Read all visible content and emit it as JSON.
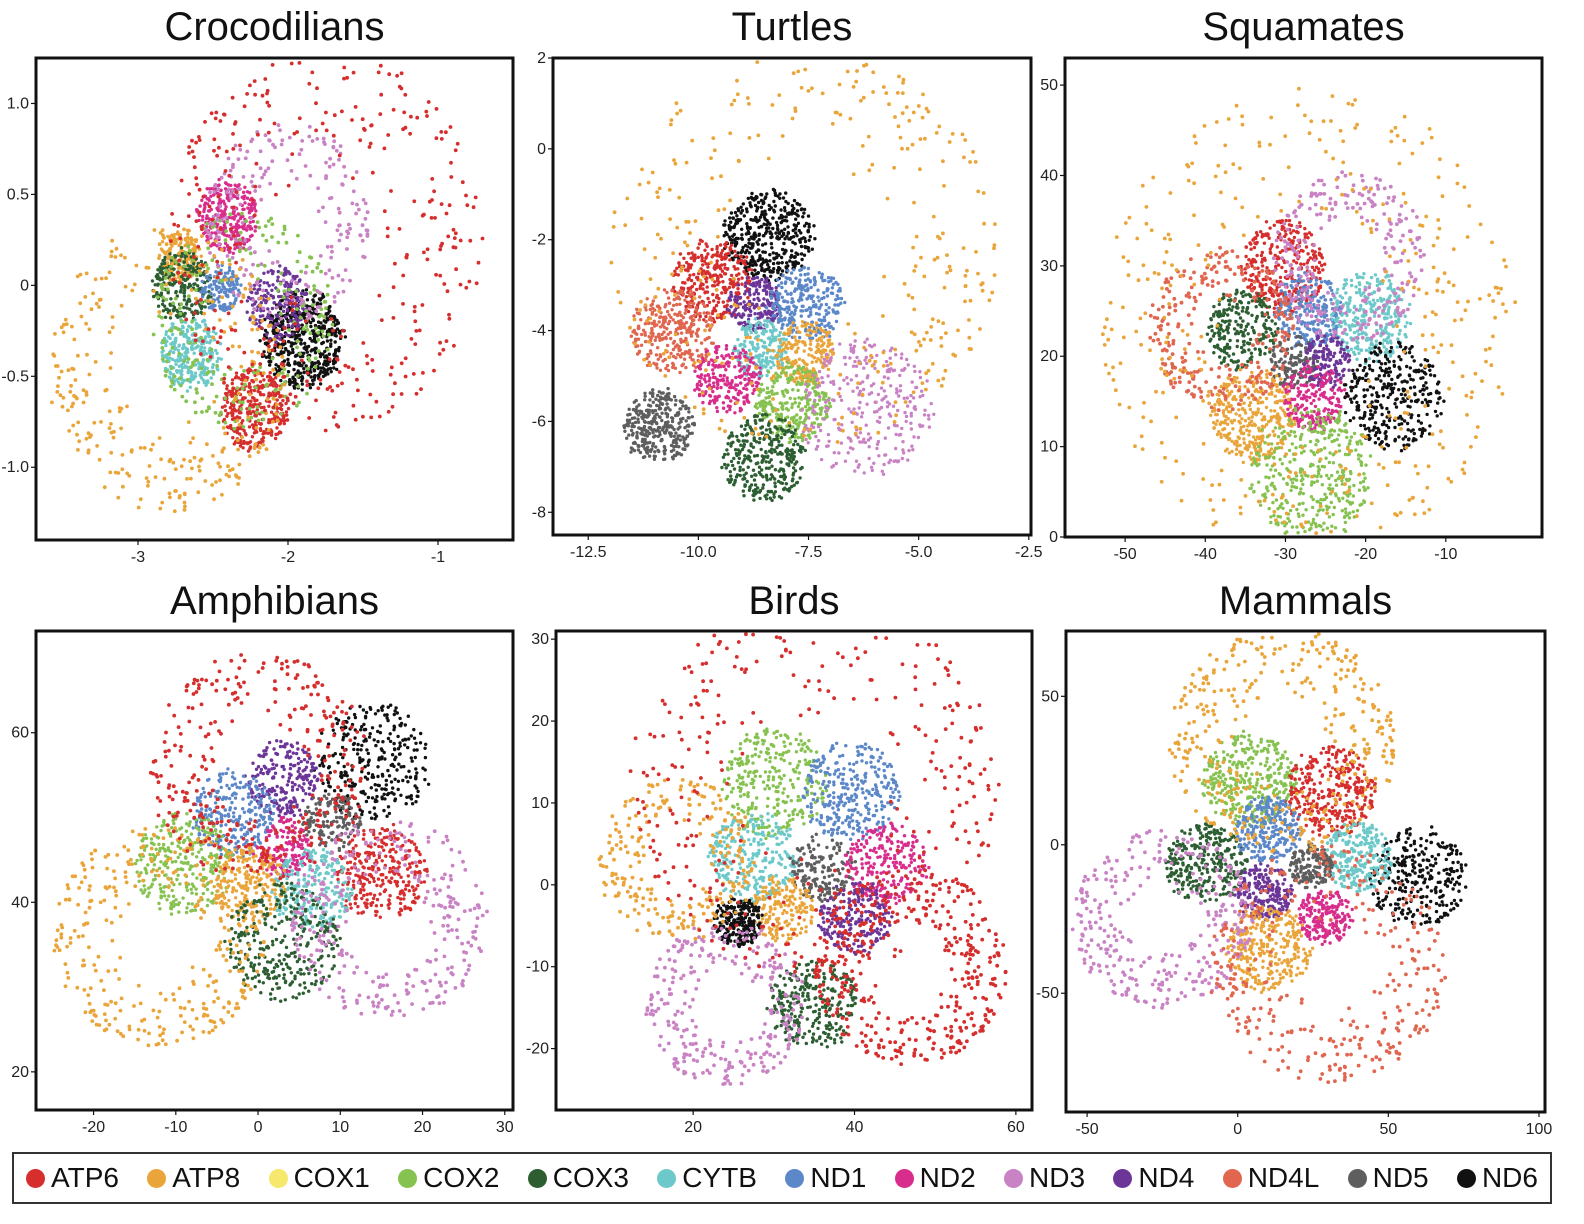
{
  "legend": {
    "placement": "bottom",
    "items": [
      {
        "label": "ATP6",
        "color": "#d62d2d"
      },
      {
        "label": "ATP8",
        "color": "#eaa53a"
      },
      {
        "label": "COX1",
        "color": "#f5e86a"
      },
      {
        "label": "COX2",
        "color": "#86c24f"
      },
      {
        "label": "COX3",
        "color": "#2c5e32"
      },
      {
        "label": "CYTB",
        "color": "#6dc9c9"
      },
      {
        "label": "ND1",
        "color": "#5c88c9"
      },
      {
        "label": "ND2",
        "color": "#d82d8c"
      },
      {
        "label": "ND3",
        "color": "#c982c4"
      },
      {
        "label": "ND4",
        "color": "#6c3598"
      },
      {
        "label": "ND4L",
        "color": "#e0664f"
      },
      {
        "label": "ND5",
        "color": "#5e5e5e"
      },
      {
        "label": "ND6",
        "color": "#111111"
      }
    ]
  },
  "chart_data": [
    {
      "type": "scatter",
      "title": "Crocodilians",
      "xlim": [
        -3.68,
        -0.5
      ],
      "ylim": [
        -1.4,
        1.25
      ],
      "xticks": [
        "-3",
        "-2",
        "-1"
      ],
      "xtick_values": [
        -3,
        -2,
        -1
      ],
      "yticks": [
        "1.0",
        "0.5",
        "0",
        "-0.5",
        "-1.0"
      ],
      "ytick_values": [
        1.0,
        0.5,
        0,
        -0.5,
        -1.0
      ],
      "grid": false,
      "clusters": [
        {
          "gene": "ND6",
          "cx": -1.9,
          "cy": -0.3,
          "r": 0.27,
          "n": 520,
          "shape": "blob"
        },
        {
          "gene": "ND4",
          "cx": -2.07,
          "cy": -0.1,
          "r": 0.2,
          "n": 200,
          "shape": "blob"
        },
        {
          "gene": "ND2",
          "cx": -2.4,
          "cy": 0.38,
          "r": 0.2,
          "n": 280,
          "shape": "blob"
        },
        {
          "gene": "ATP8",
          "cx": -2.72,
          "cy": 0.16,
          "r": 0.14,
          "n": 150,
          "shape": "blob"
        },
        {
          "gene": "COX3",
          "cx": -2.7,
          "cy": 0.0,
          "r": 0.2,
          "n": 240,
          "shape": "blob"
        },
        {
          "gene": "ND1",
          "cx": -2.45,
          "cy": -0.02,
          "r": 0.13,
          "n": 140,
          "shape": "blob"
        },
        {
          "gene": "CYTB",
          "cx": -2.65,
          "cy": -0.37,
          "r": 0.2,
          "n": 280,
          "shape": "blob"
        },
        {
          "gene": "ATP6",
          "cx": -2.23,
          "cy": -0.68,
          "r": 0.22,
          "n": 320,
          "shape": "blob"
        },
        {
          "gene": "COX2",
          "cx": -2.3,
          "cy": -0.2,
          "r": 0.6,
          "n": 260,
          "shape": "ring"
        },
        {
          "gene": "ND3",
          "cx": -2.0,
          "cy": 0.35,
          "r": 0.55,
          "n": 220,
          "shape": "ring"
        },
        {
          "gene": "ATP8",
          "cx": -2.8,
          "cy": -0.45,
          "r": 0.8,
          "n": 320,
          "shape": "ring"
        },
        {
          "gene": "ATP6",
          "cx": -1.75,
          "cy": 0.25,
          "r": 1.05,
          "n": 360,
          "shape": "ring"
        }
      ]
    },
    {
      "type": "scatter",
      "title": "Turtles",
      "xlim": [
        -13.3,
        -2.45
      ],
      "ylim": [
        -8.5,
        2.0
      ],
      "xticks": [
        "-12.5",
        "-10.0",
        "-7.5",
        "-5.0",
        "-2.5"
      ],
      "xtick_values": [
        -12.5,
        -10.0,
        -7.5,
        -5.0,
        -2.5
      ],
      "yticks": [
        "2",
        "0",
        "-2",
        "-4",
        "-6",
        "-8"
      ],
      "ytick_values": [
        2,
        0,
        -2,
        -4,
        -6,
        -8
      ],
      "grid": false,
      "clusters": [
        {
          "gene": "ND6",
          "cx": -8.4,
          "cy": -1.9,
          "r": 1.0,
          "n": 420,
          "shape": "blob"
        },
        {
          "gene": "ATP6",
          "cx": -9.7,
          "cy": -2.9,
          "r": 0.9,
          "n": 300,
          "shape": "blob"
        },
        {
          "gene": "ND4",
          "cx": -8.75,
          "cy": -3.4,
          "r": 0.6,
          "n": 180,
          "shape": "blob"
        },
        {
          "gene": "ND1",
          "cx": -7.55,
          "cy": -3.4,
          "r": 0.85,
          "n": 280,
          "shape": "blob"
        },
        {
          "gene": "ND4L",
          "cx": -10.55,
          "cy": -4.0,
          "r": 0.95,
          "n": 300,
          "shape": "blob"
        },
        {
          "gene": "CYTB",
          "cx": -8.6,
          "cy": -4.4,
          "r": 0.65,
          "n": 200,
          "shape": "blob"
        },
        {
          "gene": "ATP8",
          "cx": -7.6,
          "cy": -4.5,
          "r": 0.7,
          "n": 200,
          "shape": "blob"
        },
        {
          "gene": "ND2",
          "cx": -9.35,
          "cy": -5.05,
          "r": 0.75,
          "n": 220,
          "shape": "blob"
        },
        {
          "gene": "COX2",
          "cx": -7.85,
          "cy": -5.6,
          "r": 0.85,
          "n": 280,
          "shape": "blob"
        },
        {
          "gene": "COX3",
          "cx": -8.5,
          "cy": -6.8,
          "r": 0.95,
          "n": 320,
          "shape": "blob"
        },
        {
          "gene": "ND5",
          "cx": -10.9,
          "cy": -6.1,
          "r": 0.8,
          "n": 320,
          "shape": "blob"
        },
        {
          "gene": "ND3",
          "cx": -6.2,
          "cy": -5.7,
          "r": 1.5,
          "n": 300,
          "shape": "blob"
        },
        {
          "gene": "ATP8",
          "cx": -7.6,
          "cy": -2.2,
          "r": 4.4,
          "n": 340,
          "shape": "ring"
        }
      ]
    },
    {
      "type": "scatter",
      "title": "Squamates",
      "xlim": [
        -57.5,
        2.0
      ],
      "ylim": [
        0.0,
        53.0
      ],
      "xticks": [
        "-50",
        "-40",
        "-30",
        "-20",
        "-10"
      ],
      "xtick_values": [
        -50,
        -40,
        -30,
        -20,
        -10
      ],
      "yticks": [
        "50",
        "40",
        "30",
        "20",
        "10",
        "0"
      ],
      "ytick_values": [
        50,
        40,
        30,
        20,
        10,
        0
      ],
      "grid": false,
      "clusters": [
        {
          "gene": "ATP6",
          "cx": -30.3,
          "cy": 30.0,
          "r": 5.2,
          "n": 320,
          "shape": "blob"
        },
        {
          "gene": "ND1",
          "cx": -27.0,
          "cy": 25.0,
          "r": 4.2,
          "n": 240,
          "shape": "blob"
        },
        {
          "gene": "CYTB",
          "cx": -19.5,
          "cy": 24.5,
          "r": 5.0,
          "n": 300,
          "shape": "blob"
        },
        {
          "gene": "COX3",
          "cx": -35.5,
          "cy": 23.0,
          "r": 4.3,
          "n": 240,
          "shape": "blob"
        },
        {
          "gene": "ND5",
          "cx": -29.0,
          "cy": 19.5,
          "r": 3.0,
          "n": 140,
          "shape": "blob"
        },
        {
          "gene": "ND4",
          "cx": -24.8,
          "cy": 19.5,
          "r": 3.0,
          "n": 140,
          "shape": "blob"
        },
        {
          "gene": "ATP8",
          "cx": -34.0,
          "cy": 13.5,
          "r": 5.2,
          "n": 340,
          "shape": "blob"
        },
        {
          "gene": "ND2",
          "cx": -26.5,
          "cy": 15.5,
          "r": 3.8,
          "n": 200,
          "shape": "blob"
        },
        {
          "gene": "ND6",
          "cx": -16.5,
          "cy": 15.5,
          "r": 6.0,
          "n": 330,
          "shape": "blob"
        },
        {
          "gene": "COX2",
          "cx": -27.0,
          "cy": 7.0,
          "r": 7.5,
          "n": 400,
          "shape": "blob"
        },
        {
          "gene": "ND3",
          "cx": -22.0,
          "cy": 31.0,
          "r": 9.5,
          "n": 280,
          "shape": "ring"
        },
        {
          "gene": "ND4L",
          "cx": -38.0,
          "cy": 23.0,
          "r": 9.0,
          "n": 260,
          "shape": "ring"
        },
        {
          "gene": "ATP8",
          "cx": -27.0,
          "cy": 24.0,
          "r": 26.0,
          "n": 380,
          "shape": "ring"
        }
      ]
    },
    {
      "type": "scatter",
      "title": "Amphibians",
      "xlim": [
        -27.0,
        31.0
      ],
      "ylim": [
        15.5,
        72.0
      ],
      "xticks": [
        "-20",
        "-10",
        "0",
        "10",
        "20",
        "30"
      ],
      "xtick_values": [
        -20,
        -10,
        0,
        10,
        20,
        30
      ],
      "yticks": [
        "60",
        "40",
        "20"
      ],
      "ytick_values": [
        60,
        40,
        20
      ],
      "grid": false,
      "clusters": [
        {
          "gene": "ND6",
          "cx": 14.0,
          "cy": 56.5,
          "r": 7.0,
          "n": 300,
          "shape": "blob"
        },
        {
          "gene": "ND4",
          "cx": 3.0,
          "cy": 54.5,
          "r": 4.5,
          "n": 220,
          "shape": "blob"
        },
        {
          "gene": "ND1",
          "cx": -3.0,
          "cy": 50.5,
          "r": 5.0,
          "n": 260,
          "shape": "blob"
        },
        {
          "gene": "ND5",
          "cx": 9.0,
          "cy": 49.5,
          "r": 3.5,
          "n": 150,
          "shape": "blob"
        },
        {
          "gene": "ND2",
          "cx": 3.0,
          "cy": 46.5,
          "r": 3.5,
          "n": 160,
          "shape": "blob"
        },
        {
          "gene": "COX2",
          "cx": -9.0,
          "cy": 44.5,
          "r": 6.0,
          "n": 300,
          "shape": "blob"
        },
        {
          "gene": "ATP6",
          "cx": 15.0,
          "cy": 43.5,
          "r": 5.5,
          "n": 300,
          "shape": "blob"
        },
        {
          "gene": "ATP8",
          "cx": -1.0,
          "cy": 42.0,
          "r": 4.5,
          "n": 220,
          "shape": "blob"
        },
        {
          "gene": "CYTB",
          "cx": 6.5,
          "cy": 41.5,
          "r": 4.8,
          "n": 240,
          "shape": "blob"
        },
        {
          "gene": "COX3",
          "cx": 3.0,
          "cy": 35.5,
          "r": 7.0,
          "n": 320,
          "shape": "blob"
        },
        {
          "gene": "ND3",
          "cx": 16.0,
          "cy": 38.0,
          "r": 12.0,
          "n": 300,
          "shape": "ring"
        },
        {
          "gene": "ATP8",
          "cx": -12.0,
          "cy": 36.0,
          "r": 13.0,
          "n": 320,
          "shape": "ring"
        },
        {
          "gene": "ATP6",
          "cx": 0.0,
          "cy": 56.0,
          "r": 13.5,
          "n": 320,
          "shape": "ring"
        }
      ]
    },
    {
      "type": "scatter",
      "title": "Birds",
      "xlim": [
        3.0,
        62.0
      ],
      "ylim": [
        -27.5,
        31.0
      ],
      "xticks": [
        "20",
        "40",
        "60"
      ],
      "xtick_values": [
        20,
        40,
        60
      ],
      "yticks": [
        "30",
        "20",
        "10",
        "0",
        "-10",
        "-20"
      ],
      "ytick_values": [
        30,
        20,
        10,
        0,
        -10,
        -20
      ],
      "grid": false,
      "clusters": [
        {
          "gene": "COX2",
          "cx": 30.0,
          "cy": 12.5,
          "r": 6.5,
          "n": 300,
          "shape": "blob"
        },
        {
          "gene": "ND1",
          "cx": 39.5,
          "cy": 11.5,
          "r": 6.0,
          "n": 300,
          "shape": "blob"
        },
        {
          "gene": "CYTB",
          "cx": 27.5,
          "cy": 3.5,
          "r": 5.5,
          "n": 260,
          "shape": "blob"
        },
        {
          "gene": "ND5",
          "cx": 36.0,
          "cy": 2.0,
          "r": 4.0,
          "n": 170,
          "shape": "blob"
        },
        {
          "gene": "ND2",
          "cx": 44.0,
          "cy": 2.5,
          "r": 5.0,
          "n": 240,
          "shape": "blob"
        },
        {
          "gene": "ATP8",
          "cx": 31.0,
          "cy": -3.0,
          "r": 4.0,
          "n": 180,
          "shape": "blob"
        },
        {
          "gene": "ND6",
          "cx": 25.5,
          "cy": -4.5,
          "r": 3.0,
          "n": 240,
          "shape": "blob"
        },
        {
          "gene": "ND4",
          "cx": 40.0,
          "cy": -4.0,
          "r": 4.5,
          "n": 220,
          "shape": "blob"
        },
        {
          "gene": "COX3",
          "cx": 35.0,
          "cy": -14.5,
          "r": 5.5,
          "n": 280,
          "shape": "blob"
        },
        {
          "gene": "ATP6",
          "cx": 47.0,
          "cy": -10.0,
          "r": 12.0,
          "n": 380,
          "shape": "ring"
        },
        {
          "gene": "ND3",
          "cx": 24.0,
          "cy": -14.5,
          "r": 10.0,
          "n": 280,
          "shape": "ring"
        },
        {
          "gene": "ATP8",
          "cx": 18.0,
          "cy": 3.0,
          "r": 10.0,
          "n": 240,
          "shape": "ring"
        },
        {
          "gene": "ATP6",
          "cx": 35.0,
          "cy": 12.0,
          "r": 23.0,
          "n": 360,
          "shape": "ring"
        }
      ]
    },
    {
      "type": "scatter",
      "title": "Mammals",
      "xlim": [
        -57.0,
        102.0
      ],
      "ylim": [
        -90.0,
        72.0
      ],
      "xticks": [
        "-50",
        "0",
        "50",
        "100"
      ],
      "xtick_values": [
        -50,
        0,
        50,
        100
      ],
      "yticks": [
        "50",
        "0",
        "-50"
      ],
      "ytick_values": [
        50,
        0,
        -50
      ],
      "grid": false,
      "clusters": [
        {
          "gene": "COX2",
          "cx": 4.0,
          "cy": 22.0,
          "r": 15.5,
          "n": 340,
          "shape": "blob"
        },
        {
          "gene": "ATP6",
          "cx": 31.0,
          "cy": 18.0,
          "r": 15.0,
          "n": 320,
          "shape": "blob"
        },
        {
          "gene": "ND6",
          "cx": 60.0,
          "cy": -11.0,
          "r": 16.5,
          "n": 300,
          "shape": "blob"
        },
        {
          "gene": "COX3",
          "cx": -10.5,
          "cy": -6.0,
          "r": 13.5,
          "n": 300,
          "shape": "blob"
        },
        {
          "gene": "ND1",
          "cx": 10.0,
          "cy": 5.0,
          "r": 11.0,
          "n": 260,
          "shape": "blob"
        },
        {
          "gene": "CYTB",
          "cx": 40.0,
          "cy": -4.0,
          "r": 11.5,
          "n": 260,
          "shape": "blob"
        },
        {
          "gene": "ND5",
          "cx": 24.0,
          "cy": -7.0,
          "r": 7.5,
          "n": 160,
          "shape": "blob"
        },
        {
          "gene": "ND4",
          "cx": 9.0,
          "cy": -16.0,
          "r": 9.5,
          "n": 220,
          "shape": "blob"
        },
        {
          "gene": "ND2",
          "cx": 29.0,
          "cy": -24.0,
          "r": 9.0,
          "n": 200,
          "shape": "blob"
        },
        {
          "gene": "ATP8",
          "cx": 10.0,
          "cy": -35.0,
          "r": 14.0,
          "n": 320,
          "shape": "blob"
        },
        {
          "gene": "ND3",
          "cx": -25.0,
          "cy": -25.0,
          "r": 30.0,
          "n": 320,
          "shape": "ring"
        },
        {
          "gene": "ATP8",
          "cx": 15.0,
          "cy": 35.0,
          "r": 38.0,
          "n": 360,
          "shape": "ring"
        },
        {
          "gene": "ND4L",
          "cx": 30.0,
          "cy": -40.0,
          "r": 40.0,
          "n": 320,
          "shape": "ring"
        }
      ]
    }
  ]
}
